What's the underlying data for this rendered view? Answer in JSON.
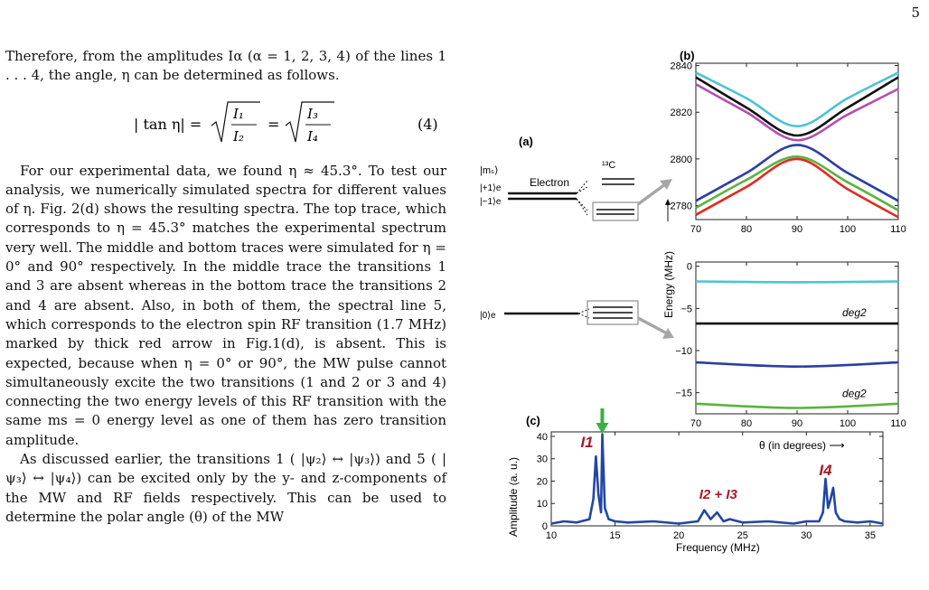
{
  "page_number": "5",
  "text": {
    "p1": "Therefore, from the amplitudes Iα (α = 1, 2, 3, 4) of the lines 1 . . . 4, the angle, η can be determined as follows.",
    "eq_lhs": "| tan η| =",
    "eq_num1": "I₁",
    "eq_den1": "I₂",
    "eq_num2": "I₃",
    "eq_den2": "I₄",
    "eq_equals": "=",
    "eq_number": "(4)",
    "p2": "For our experimental data, we found η ≈ 45.3°. To test our analysis, we numerically simulated spectra for different values of η. Fig. 2(d) shows the resulting spectra. The top trace, which corresponds to η = 45.3° matches the experimental spectrum very well. The middle and bottom traces were simulated for η = 0° and 90° respectively. In the middle trace the transitions 1 and 3 are absent whereas in the bottom trace the transitions 2 and 4 are absent. Also, in both of them, the spectral line 5, which corresponds to the electron spin RF transition (1.7 MHz) marked by thick red arrow in Fig.1(d), is absent. This is expected, because when η = 0° or 90°, the MW pulse cannot simultaneously excite the two transitions (1 and 2 or 3 and 4) connecting the two energy levels of this RF transition with the same ms = 0 energy level as one of them has zero transition amplitude.",
    "p3": "As discussed earlier, the transitions 1 ( |ψ₂⟩ ↔ |ψ₃⟩) and 5 ( |ψ₃⟩ ↔ |ψ₄⟩) can be excited only by the y- and z-components of the MW and RF fields respectively. This can be used to determine the polar angle (θ) of the MW"
  },
  "figure": {
    "panel_a": {
      "label": "(a)",
      "ms_label": "|mₛ⟩",
      "plus1": "|+1⟩e",
      "minus1": "|−1⟩e",
      "zero": "|0⟩e",
      "electron": "Electron",
      "c13": "¹³C"
    },
    "panel_b": {
      "label": "(b)",
      "ylabel": "Energy (MHz)",
      "xlabel": "θ (in degrees) ⟶",
      "deg2_top": "deg2",
      "deg2_bottom": "deg2",
      "upper_ticks": [
        "2840",
        "2820",
        "2800",
        "2780"
      ],
      "lower_ticks": [
        "0",
        "−5",
        "−10",
        "−15"
      ],
      "x_ticks_upper": [
        "70",
        "80",
        "90",
        "100",
        "110"
      ],
      "x_ticks_lower": [
        "70",
        "80",
        "90",
        "100",
        "110"
      ]
    },
    "panel_c": {
      "label": "(c)",
      "ylabel": "Amplitude (a. u.)",
      "xlabel": "Frequency (MHz)",
      "y_ticks": [
        "0",
        "10",
        "20",
        "30",
        "40"
      ],
      "x_ticks": [
        "10",
        "15",
        "20",
        "25",
        "30",
        "35"
      ],
      "label_I1": "I1",
      "label_I23": "I2 + I3",
      "label_I4": "I4"
    },
    "colors": {
      "cyan": "#4dc3d7",
      "black": "#111111",
      "magenta": "#b34fb0",
      "blue": "#2c3ea1",
      "green": "#59b43c",
      "red": "#e22a1f",
      "spectrum": "#2346a5",
      "arrow_green": "#3dae45",
      "label_red": "#a5192a",
      "gray": "#a6a6a6"
    }
  },
  "chart_data": [
    {
      "type": "line",
      "title": "(b) upper",
      "xlabel": "",
      "ylabel": "Energy (MHz)",
      "xlim": [
        70,
        110
      ],
      "ylim": [
        2774,
        2841
      ],
      "series": [
        {
          "name": "cyan",
          "x": [
            70,
            80,
            90,
            100,
            110
          ],
          "y": [
            2837,
            2826,
            2814,
            2826,
            2837
          ]
        },
        {
          "name": "black",
          "x": [
            70,
            80,
            90,
            100,
            110
          ],
          "y": [
            2835,
            2822,
            2810,
            2822,
            2835
          ]
        },
        {
          "name": "magenta",
          "x": [
            70,
            80,
            90,
            100,
            110
          ],
          "y": [
            2832,
            2820,
            2808,
            2819,
            2830
          ]
        },
        {
          "name": "blue",
          "x": [
            70,
            80,
            90,
            100,
            110
          ],
          "y": [
            2782,
            2794,
            2806,
            2794,
            2782
          ]
        },
        {
          "name": "green",
          "x": [
            70,
            80,
            90,
            100,
            110
          ],
          "y": [
            2779,
            2791,
            2801,
            2790,
            2778
          ]
        },
        {
          "name": "red",
          "x": [
            70,
            80,
            90,
            100,
            110
          ],
          "y": [
            2776,
            2788,
            2800,
            2787,
            2775
          ]
        }
      ]
    },
    {
      "type": "line",
      "title": "(b) lower",
      "xlabel": "θ (in degrees)",
      "ylabel": "Energy (MHz)",
      "xlim": [
        70,
        110
      ],
      "ylim": [
        -17.5,
        0.5
      ],
      "series": [
        {
          "name": "cyan",
          "x": [
            70,
            90,
            110
          ],
          "y": [
            -1.8,
            -1.9,
            -1.8
          ]
        },
        {
          "name": "black",
          "x": [
            70,
            90,
            110
          ],
          "y": [
            -6.8,
            -6.8,
            -6.8
          ]
        },
        {
          "name": "blue",
          "x": [
            70,
            90,
            110
          ],
          "y": [
            -11.4,
            -11.9,
            -11.4
          ]
        },
        {
          "name": "green",
          "x": [
            70,
            90,
            110
          ],
          "y": [
            -16.3,
            -16.8,
            -16.3
          ]
        }
      ]
    },
    {
      "type": "line",
      "title": "(c)",
      "xlabel": "Frequency (MHz)",
      "ylabel": "Amplitude (a. u.)",
      "xlim": [
        10,
        36
      ],
      "ylim": [
        0,
        42
      ],
      "series": [
        {
          "name": "spectrum",
          "x": [
            10,
            11,
            12,
            13,
            13.3,
            13.5,
            13.7,
            13.9,
            14.0,
            14.2,
            14.5,
            15,
            16,
            18,
            20,
            21.5,
            22,
            22.5,
            23,
            23.5,
            24,
            25,
            27,
            29,
            30,
            31,
            31.3,
            31.5,
            31.7,
            31.9,
            32.1,
            32.3,
            32.6,
            33,
            34,
            35,
            36
          ],
          "y": [
            1,
            2,
            1.5,
            3,
            12,
            31,
            14,
            6,
            41,
            8,
            3,
            2,
            1.5,
            2,
            1,
            2,
            7,
            3,
            6,
            2,
            3,
            1.5,
            2,
            1,
            2,
            2,
            6,
            21,
            8,
            12,
            17,
            6,
            3,
            2,
            1.5,
            2,
            1
          ]
        }
      ]
    }
  ]
}
